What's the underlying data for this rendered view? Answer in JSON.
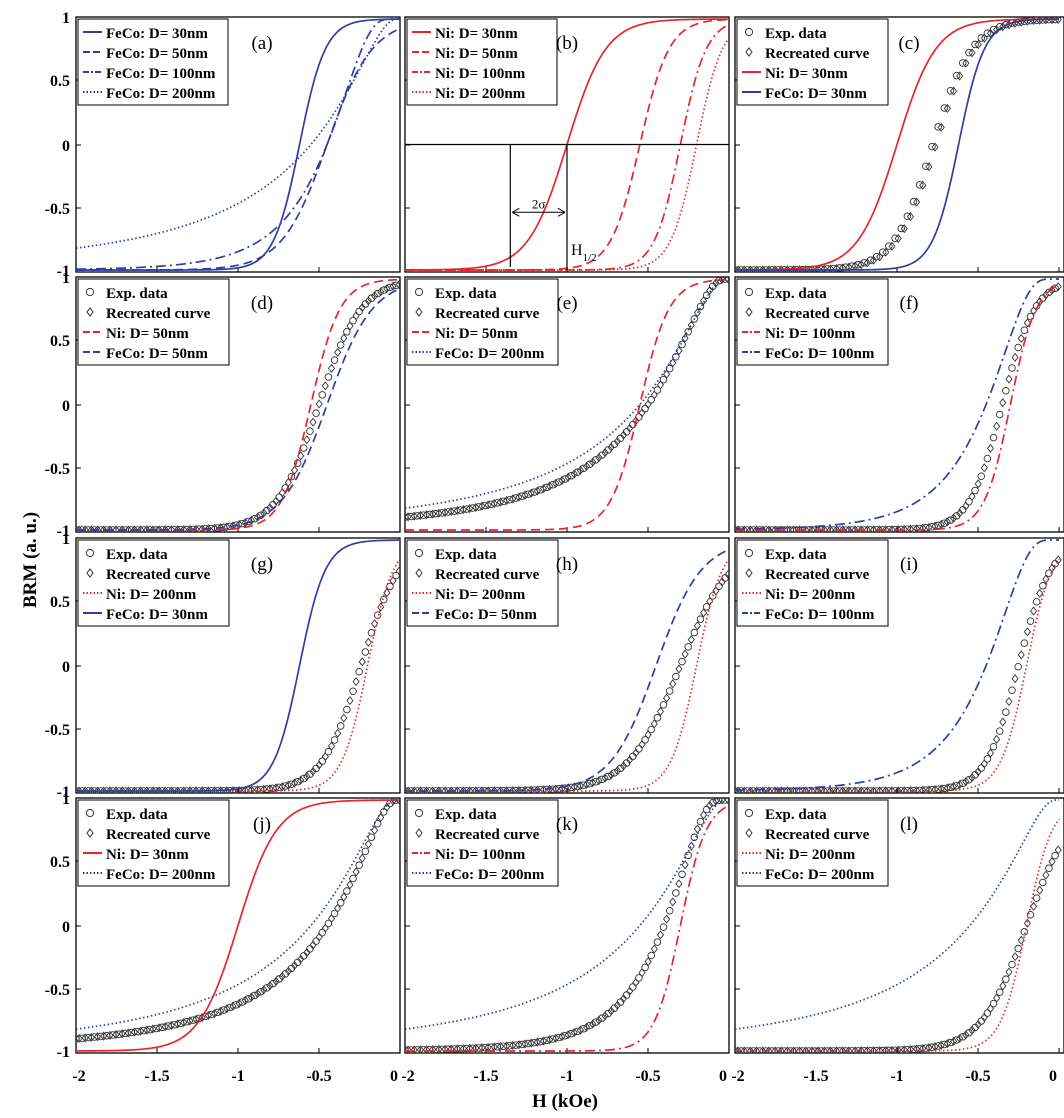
{
  "figure": {
    "ylabel": "BRM (a. u.)",
    "xlabel": "H (kOe)",
    "annotations": {
      "sigma": "2σ",
      "h_half_main": "H",
      "h_half_sub": "1/2"
    }
  },
  "colors": {
    "red": "#e8252a",
    "blue": "#2e3fa3",
    "marker": "#333333",
    "axis": "#000000"
  },
  "chart_data": [
    {
      "type": "line",
      "panel": "(a)",
      "xlim": [
        -2,
        0
      ],
      "ylim": [
        -1,
        1
      ],
      "yticks": [
        "1",
        "0.5",
        "0",
        "-0.5",
        "-1"
      ],
      "xticks": [],
      "series": [
        {
          "name": "FeCo: D= 30nm",
          "color": "blue",
          "style": "solid",
          "curve": "logistic",
          "center": -0.62,
          "width": 0.08
        },
        {
          "name": "FeCo: D= 50nm",
          "color": "blue",
          "style": "dashed",
          "curve": "logistic",
          "center": -0.45,
          "width": 0.14
        },
        {
          "name": "FeCo: D= 100nm",
          "color": "blue",
          "style": "dashdot",
          "curve": "lognormal",
          "median": 0.45,
          "s": 0.55
        },
        {
          "name": "FeCo: D= 200nm",
          "color": "blue",
          "style": "dotted",
          "curve": "lognormal",
          "median": 0.55,
          "s": 0.95
        }
      ]
    },
    {
      "type": "line",
      "panel": "(b)",
      "xlim": [
        -2,
        0
      ],
      "ylim": [
        -1,
        1
      ],
      "yticks": [],
      "xticks": [],
      "series": [
        {
          "name": "Ni: D= 30nm",
          "color": "red",
          "style": "solid",
          "curve": "logistic",
          "center": -1.0,
          "width": 0.12
        },
        {
          "name": "Ni: D= 50nm",
          "color": "red",
          "style": "dashed",
          "curve": "logistic",
          "center": -0.55,
          "width": 0.09
        },
        {
          "name": "Ni: D= 100nm",
          "color": "red",
          "style": "dashdot",
          "curve": "logistic",
          "center": -0.3,
          "width": 0.08
        },
        {
          "name": "Ni: D= 200nm",
          "color": "red",
          "style": "dotted",
          "curve": "logistic",
          "center": -0.2,
          "width": 0.08
        }
      ]
    },
    {
      "type": "line",
      "panel": "(c)",
      "xlim": [
        -2,
        0
      ],
      "ylim": [
        -1,
        1
      ],
      "yticks": [],
      "xticks": [],
      "series": [
        {
          "name": "Exp. data",
          "color": "marker",
          "style": "circle",
          "curve": "logistic",
          "center": -0.78,
          "width": 0.12
        },
        {
          "name": "Recreated curve",
          "color": "marker",
          "style": "diamond",
          "curve": "logistic",
          "center": -0.76,
          "width": 0.12
        },
        {
          "name": "Ni: D= 30nm",
          "color": "red",
          "style": "solid",
          "curve": "logistic",
          "center": -1.0,
          "width": 0.12
        },
        {
          "name": "FeCo: D= 30nm",
          "color": "blue",
          "style": "solid",
          "curve": "logistic",
          "center": -0.62,
          "width": 0.08
        }
      ]
    },
    {
      "type": "line",
      "panel": "(d)",
      "xlim": [
        -2,
        0
      ],
      "ylim": [
        -1,
        1
      ],
      "yticks": [
        "1",
        "0.5",
        "0",
        "-0.5",
        "-1"
      ],
      "xticks": [],
      "series": [
        {
          "name": "Exp. data",
          "color": "marker",
          "style": "circle",
          "curve": "logistic",
          "center": -0.5,
          "width": 0.13
        },
        {
          "name": "Recreated curve",
          "color": "marker",
          "style": "diamond",
          "curve": "logistic",
          "center": -0.5,
          "width": 0.13
        },
        {
          "name": "Ni: D= 50nm",
          "color": "red",
          "style": "dashed",
          "curve": "logistic",
          "center": -0.55,
          "width": 0.09
        },
        {
          "name": "FeCo: D= 50nm",
          "color": "blue",
          "style": "dashed",
          "curve": "logistic",
          "center": -0.45,
          "width": 0.14
        }
      ]
    },
    {
      "type": "line",
      "panel": "(e)",
      "xlim": [
        -2,
        0
      ],
      "ylim": [
        -1,
        1
      ],
      "yticks": [],
      "xticks": [],
      "series": [
        {
          "name": "Exp. data",
          "color": "marker",
          "style": "circle",
          "curve": "lognormal",
          "median": 0.5,
          "s": 0.85
        },
        {
          "name": "Recreated curve",
          "color": "marker",
          "style": "diamond",
          "curve": "lognormal",
          "median": 0.5,
          "s": 0.85
        },
        {
          "name": "Ni: D= 50nm",
          "color": "red",
          "style": "dashed",
          "curve": "logistic",
          "center": -0.55,
          "width": 0.09
        },
        {
          "name": "FeCo: D= 200nm",
          "color": "blue",
          "style": "dotted",
          "curve": "lognormal",
          "median": 0.55,
          "s": 0.95
        }
      ]
    },
    {
      "type": "line",
      "panel": "(f)",
      "xlim": [
        -2,
        0
      ],
      "ylim": [
        -1,
        1
      ],
      "yticks": [],
      "xticks": [],
      "series": [
        {
          "name": "Exp. data",
          "color": "marker",
          "style": "circle",
          "curve": "logistic",
          "center": -0.35,
          "width": 0.1
        },
        {
          "name": "Recreated curve",
          "color": "marker",
          "style": "diamond",
          "curve": "logistic",
          "center": -0.35,
          "width": 0.1
        },
        {
          "name": "Ni: D= 100nm",
          "color": "red",
          "style": "dashdot",
          "curve": "logistic",
          "center": -0.3,
          "width": 0.08
        },
        {
          "name": "FeCo: D= 100nm",
          "color": "blue",
          "style": "dashdot",
          "curve": "lognormal",
          "median": 0.45,
          "s": 0.55
        }
      ]
    },
    {
      "type": "line",
      "panel": "(g)",
      "xlim": [
        -2,
        0
      ],
      "ylim": [
        -1,
        1
      ],
      "yticks": [
        "1",
        "0.5",
        "0",
        "-0.5",
        "-1"
      ],
      "xticks": [],
      "series": [
        {
          "name": "Exp. data",
          "color": "marker",
          "style": "circle",
          "curve": "logistic",
          "center": -0.24,
          "width": 0.12
        },
        {
          "name": "Recreated curve",
          "color": "marker",
          "style": "diamond",
          "curve": "logistic",
          "center": -0.24,
          "width": 0.12
        },
        {
          "name": "Ni: D= 200nm",
          "color": "red",
          "style": "dotted",
          "curve": "logistic",
          "center": -0.2,
          "width": 0.08
        },
        {
          "name": "FeCo: D= 30nm",
          "color": "blue",
          "style": "solid",
          "curve": "logistic",
          "center": -0.62,
          "width": 0.08
        }
      ]
    },
    {
      "type": "line",
      "panel": "(h)",
      "xlim": [
        -2,
        0
      ],
      "ylim": [
        -1,
        1
      ],
      "yticks": [],
      "xticks": [],
      "series": [
        {
          "name": "Exp. data",
          "color": "marker",
          "style": "circle",
          "curve": "logistic",
          "center": -0.3,
          "width": 0.16
        },
        {
          "name": "Recreated curve",
          "color": "marker",
          "style": "diamond",
          "curve": "logistic",
          "center": -0.3,
          "width": 0.16
        },
        {
          "name": "Ni: D= 200nm",
          "color": "red",
          "style": "dotted",
          "curve": "logistic",
          "center": -0.2,
          "width": 0.08
        },
        {
          "name": "FeCo: D= 50nm",
          "color": "blue",
          "style": "dashed",
          "curve": "logistic",
          "center": -0.45,
          "width": 0.14
        }
      ]
    },
    {
      "type": "line",
      "panel": "(i)",
      "xlim": [
        -2,
        0
      ],
      "ylim": [
        -1,
        1
      ],
      "yticks": [],
      "xticks": [],
      "series": [
        {
          "name": "Exp. data",
          "color": "marker",
          "style": "circle",
          "curve": "logistic",
          "center": -0.25,
          "width": 0.1
        },
        {
          "name": "Recreated curve",
          "color": "marker",
          "style": "diamond",
          "curve": "logistic",
          "center": -0.25,
          "width": 0.1
        },
        {
          "name": "Ni: D= 200nm",
          "color": "red",
          "style": "dotted",
          "curve": "logistic",
          "center": -0.2,
          "width": 0.08
        },
        {
          "name": "FeCo: D= 100nm",
          "color": "blue",
          "style": "dashdot",
          "curve": "lognormal",
          "median": 0.45,
          "s": 0.55
        }
      ]
    },
    {
      "type": "line",
      "panel": "(j)",
      "xlim": [
        -2,
        0
      ],
      "ylim": [
        -1,
        1
      ],
      "yticks": [
        "1",
        "0.5",
        "0",
        "-0.5",
        "-1"
      ],
      "xticks": [
        "-2",
        "-1.5",
        "-1",
        "-0.5",
        "0"
      ],
      "series": [
        {
          "name": "Exp. data",
          "color": "marker",
          "style": "circle",
          "curve": "lognormal",
          "median": 0.45,
          "s": 0.9
        },
        {
          "name": "Recreated curve",
          "color": "marker",
          "style": "diamond",
          "curve": "lognormal",
          "median": 0.45,
          "s": 0.9
        },
        {
          "name": "Ni: D= 30nm",
          "color": "red",
          "style": "solid",
          "curve": "logistic",
          "center": -1.0,
          "width": 0.12
        },
        {
          "name": "FeCo: D= 200nm",
          "color": "blue",
          "style": "dotted",
          "curve": "lognormal",
          "median": 0.55,
          "s": 0.95
        }
      ]
    },
    {
      "type": "line",
      "panel": "(k)",
      "xlim": [
        -2,
        0
      ],
      "ylim": [
        -1,
        1
      ],
      "yticks": [],
      "xticks": [
        "-2",
        "-1.5",
        "-1",
        "-0.5",
        "0"
      ],
      "series": [
        {
          "name": "Exp. data",
          "color": "marker",
          "style": "circle",
          "curve": "lognormal",
          "median": 0.4,
          "s": 0.6
        },
        {
          "name": "Recreated curve",
          "color": "marker",
          "style": "diamond",
          "curve": "lognormal",
          "median": 0.4,
          "s": 0.6
        },
        {
          "name": "Ni: D= 100nm",
          "color": "red",
          "style": "dashdot",
          "curve": "logistic",
          "center": -0.3,
          "width": 0.08
        },
        {
          "name": "FeCo: D= 200nm",
          "color": "blue",
          "style": "dotted",
          "curve": "lognormal",
          "median": 0.55,
          "s": 0.95
        }
      ]
    },
    {
      "type": "line",
      "panel": "(l)",
      "xlim": [
        -2,
        0
      ],
      "ylim": [
        -1,
        1
      ],
      "yticks": [],
      "xticks": [
        "-2",
        "-1.5",
        "-1",
        "-0.5",
        "0"
      ],
      "series": [
        {
          "name": "Exp. data",
          "color": "marker",
          "style": "circle",
          "curve": "logistic",
          "center": -0.2,
          "width": 0.14
        },
        {
          "name": "Recreated curve",
          "color": "marker",
          "style": "diamond",
          "curve": "logistic",
          "center": -0.2,
          "width": 0.14
        },
        {
          "name": "Ni: D= 200nm",
          "color": "red",
          "style": "dotted",
          "curve": "logistic",
          "center": -0.2,
          "width": 0.08
        },
        {
          "name": "FeCo: D= 200nm",
          "color": "blue",
          "style": "dotted",
          "curve": "lognormal",
          "median": 0.55,
          "s": 0.95
        }
      ]
    }
  ]
}
